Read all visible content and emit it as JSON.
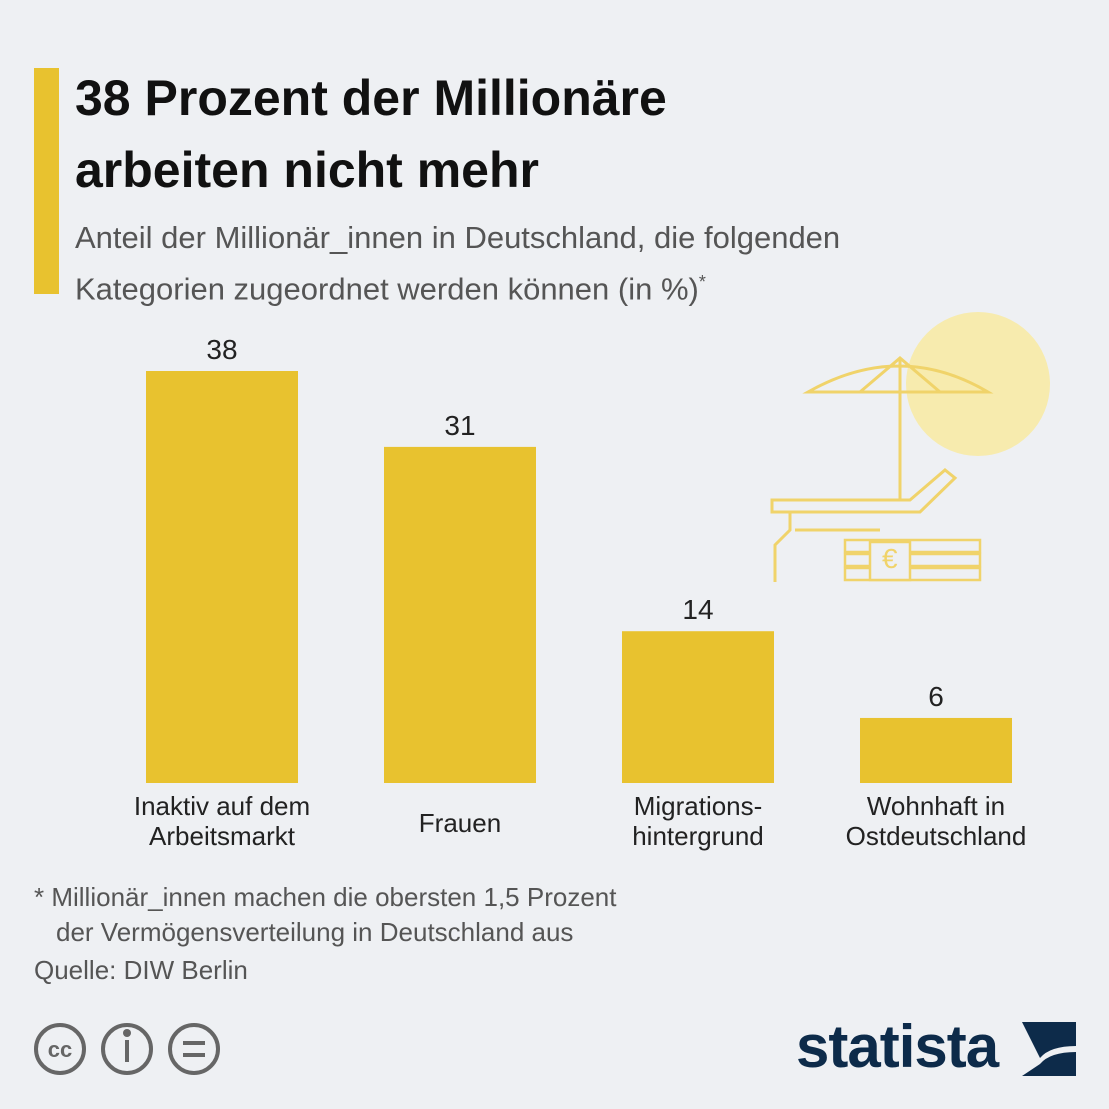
{
  "title": [
    "38 Prozent der Millionäre",
    "arbeiten nicht mehr"
  ],
  "subtitle": [
    "Anteil der Millionär_innen in Deutschland, die folgenden",
    "Kategorien zugeordnet werden können (in %)"
  ],
  "subtitle_marker": "*",
  "chart_data": {
    "type": "bar",
    "categories": [
      [
        "Inaktiv auf dem",
        "Arbeitsmarkt"
      ],
      [
        "Frauen"
      ],
      [
        "Migrations-",
        "hintergrund"
      ],
      [
        "Wohnhaft in",
        "Ostdeutschland"
      ]
    ],
    "values": [
      38,
      31,
      14,
      6
    ],
    "color": "#e8c22f"
  },
  "footnote": [
    "* Millionär_innen machen die obersten 1,5 Prozent",
    "der Vermögensverteilung in Deutschland aus"
  ],
  "source": "Quelle: DIW Berlin",
  "logo": "statista"
}
